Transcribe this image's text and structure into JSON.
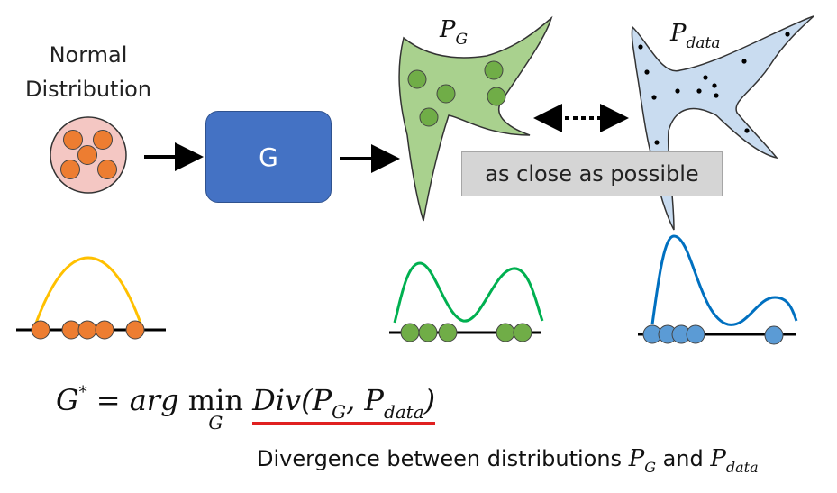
{
  "labels": {
    "normal_line1": "Normal",
    "normal_line2": "Distribution",
    "generator": "G",
    "pg_main": "P",
    "pg_sub": "G",
    "pdata_main": "P",
    "pdata_sub": "data",
    "close_text": "as close as possible"
  },
  "formula": {
    "lhs": "G",
    "star": "*",
    "eq": " = ",
    "arg": "arg ",
    "min": "min",
    "min_sub": "G",
    "div_prefix": "Div(P",
    "div_sub1": "G",
    "div_mid": ", P",
    "div_sub2": "data",
    "div_close": ")"
  },
  "caption": {
    "text": "Divergence between distributions ",
    "p1": "P",
    "p1_sub": "G",
    "and": " and ",
    "p2": "P",
    "p2_sub": "data"
  },
  "colors": {
    "orange": "#ed7d31",
    "pink_bg": "#f4c7c3",
    "green_fill": "#a9d18e",
    "green_dot": "#70ad47",
    "green_curve": "#00b050",
    "blue_fill": "#c9dcf0",
    "blue_dot": "#5b9bd5",
    "blue_curve": "#0070c0",
    "yellow_curve": "#ffc000",
    "gen_box": "#4472c4",
    "underline": "#e02020"
  }
}
